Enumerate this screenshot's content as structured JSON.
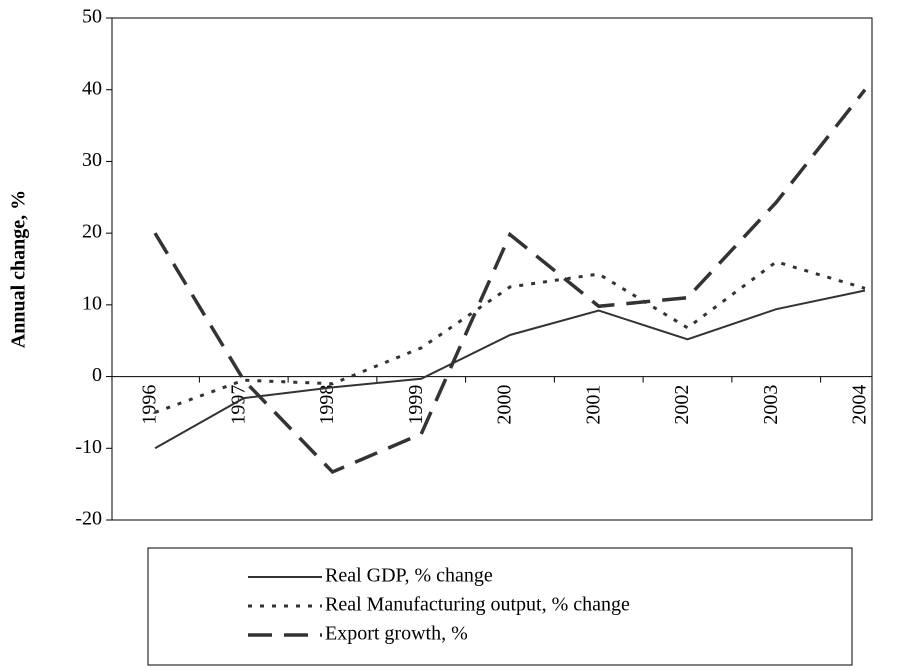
{
  "chart_data": {
    "type": "line",
    "y_label": "Annual change, %",
    "categories": [
      "1996",
      "1997",
      "1998",
      "1999",
      "2000",
      "2001",
      "2002",
      "2003",
      "2004"
    ],
    "series": [
      {
        "name": "Real GDP, % change",
        "color": "#333333",
        "values": [
          -10,
          -3,
          -1.5,
          -0.3,
          5.8,
          9.2,
          5.2,
          9.4,
          12
        ]
      },
      {
        "name": "Real Manufacturing output, % change",
        "color": "#333333",
        "values": [
          -5,
          -0.5,
          -1,
          4,
          12.5,
          14.3,
          6.8,
          16,
          12.3
        ]
      },
      {
        "name": "Export growth, %",
        "color": "#333333",
        "values": [
          20,
          -0.5,
          -13.3,
          -8,
          19.8,
          9.8,
          11,
          24.3,
          40
        ]
      }
    ],
    "ylim": [
      -20,
      50
    ],
    "yticks": [
      -20,
      -10,
      0,
      10,
      20,
      30,
      40,
      50
    ]
  }
}
